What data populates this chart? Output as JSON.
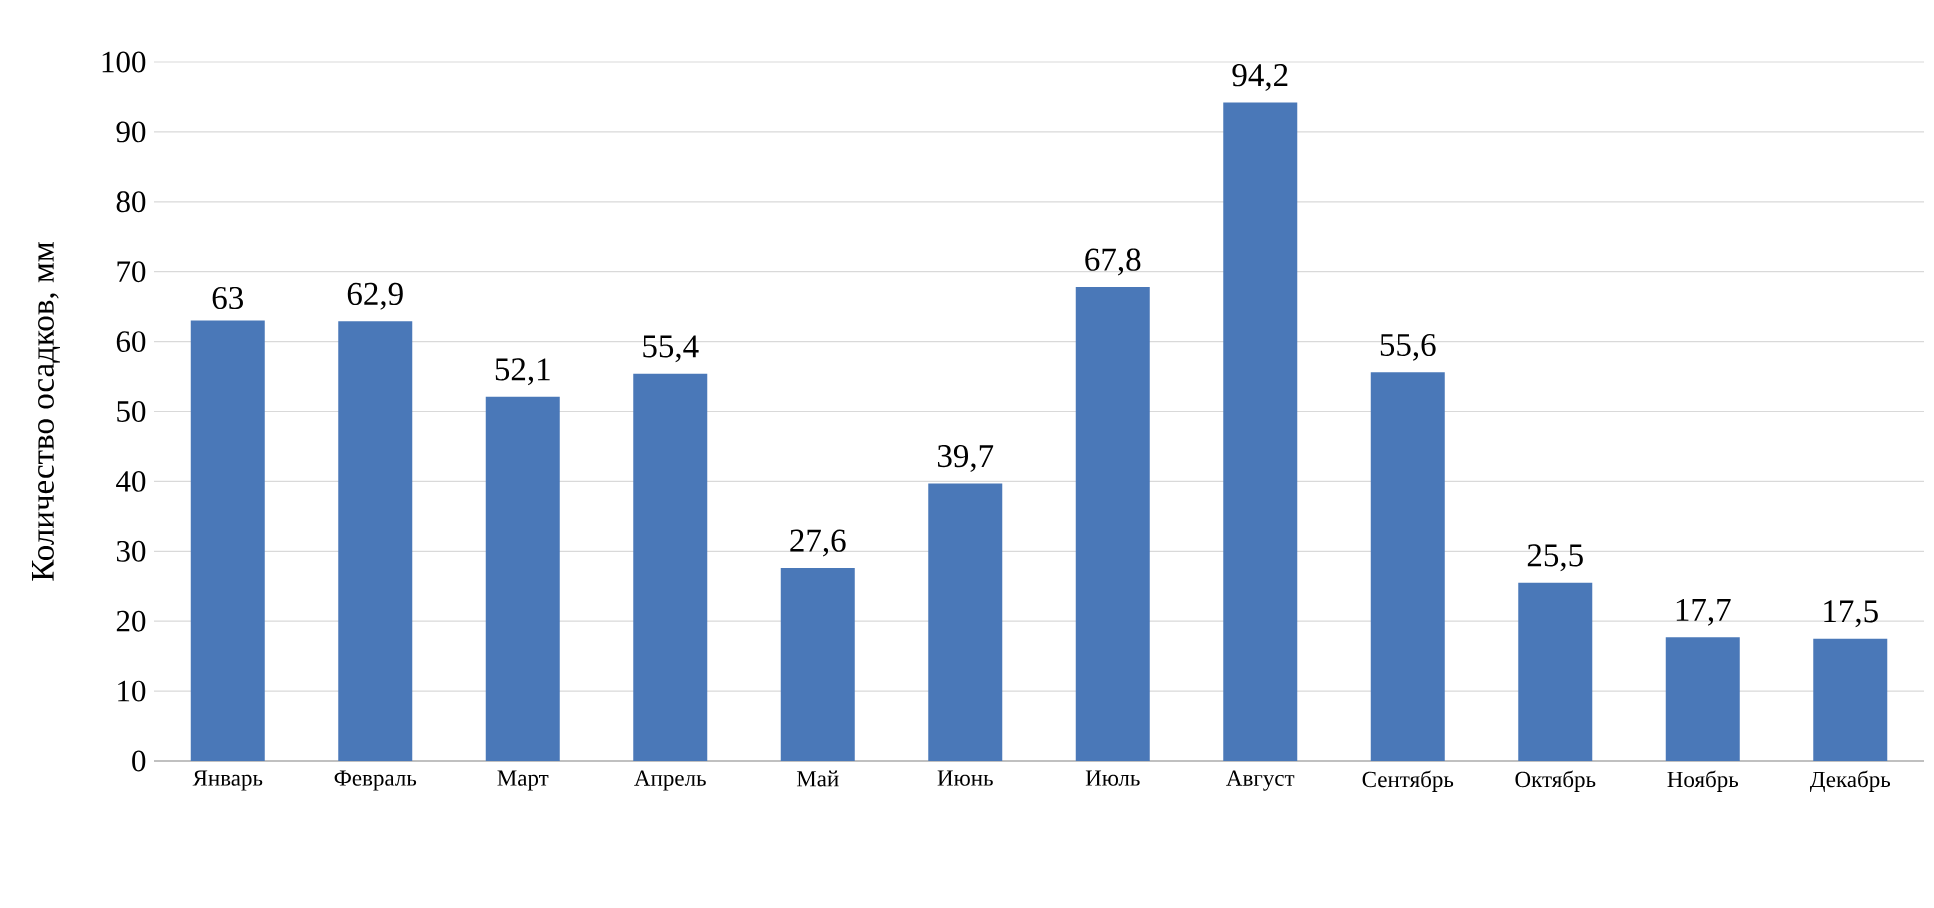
{
  "chart_data": {
    "type": "bar",
    "ylabel": "Количество осадков, мм",
    "categories": [
      "Январь",
      "Февраль",
      "Март",
      "Апрель",
      "Май",
      "Июнь",
      "Июль",
      "Август",
      "Сентябрь",
      "Октябрь",
      "Ноябрь",
      "Декабрь"
    ],
    "values": [
      63,
      62.9,
      52.1,
      55.4,
      27.6,
      39.7,
      67.8,
      94.2,
      55.6,
      25.5,
      17.7,
      17.5
    ],
    "value_labels": [
      "63",
      "62,9",
      "52,1",
      "55,4",
      "27,6",
      "39,7",
      "67,8",
      "94,2",
      "55,6",
      "25,5",
      "17,7",
      "17,5"
    ],
    "color": "#4a78b8",
    "ylim": [
      0,
      100
    ],
    "yticks": [
      0,
      10,
      20,
      30,
      40,
      50,
      60,
      70,
      80,
      90,
      100
    ],
    "grid": "y"
  }
}
